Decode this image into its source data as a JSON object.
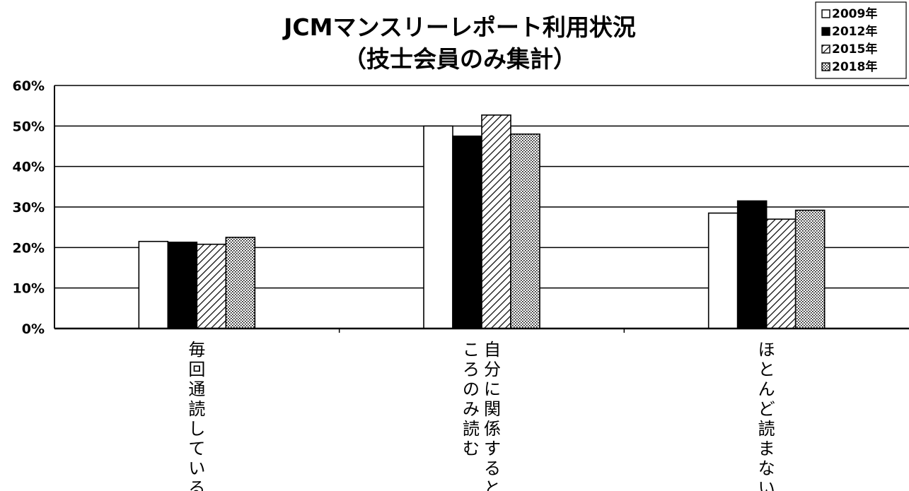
{
  "chart_data": {
    "type": "bar",
    "title": "JCMマンスリーレポート利用状況",
    "subtitle": "（技士会員のみ集計）",
    "categories": [
      "毎回通読している",
      "自分に関係すると\nころのみ読む",
      "ほとんど読まない"
    ],
    "series": [
      {
        "name": "2009年",
        "fill": "white",
        "values": [
          21.5,
          50.0,
          28.5
        ]
      },
      {
        "name": "2012年",
        "fill": "black",
        "values": [
          21.3,
          47.5,
          31.5
        ]
      },
      {
        "name": "2015年",
        "fill": "hatch",
        "values": [
          20.8,
          52.7,
          27.0
        ]
      },
      {
        "name": "2018年",
        "fill": "dots",
        "values": [
          22.5,
          48.0,
          29.2
        ]
      }
    ],
    "ylim": [
      0,
      60
    ],
    "yticks": [
      "0%",
      "10%",
      "20%",
      "30%",
      "40%",
      "50%",
      "60%"
    ],
    "grid": true,
    "legend": "top-right",
    "xlabel": "",
    "ylabel": ""
  }
}
